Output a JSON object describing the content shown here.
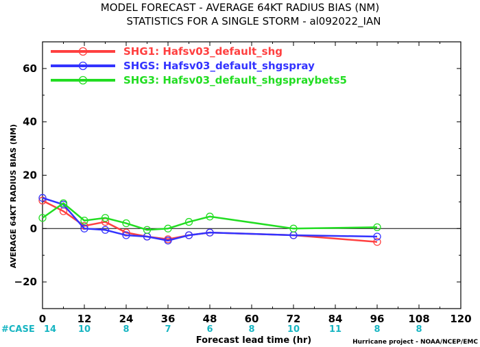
{
  "chart_data": {
    "type": "line",
    "title": "MODEL FORECAST - AVERAGE 64KT RADIUS BIAS (NM)",
    "subtitle": "STATISTICS FOR A SINGLE STORM - al092022_IAN",
    "xlabel": "Forecast lead time (hr)",
    "ylabel": "AVERAGE 64KT RADIUS BIAS (NM)",
    "xlim": [
      0,
      120
    ],
    "ylim": [
      -30,
      70
    ],
    "xticks": [
      0,
      12,
      24,
      36,
      48,
      60,
      72,
      84,
      96,
      108,
      120
    ],
    "yticks": [
      -20,
      0,
      20,
      40,
      60
    ],
    "zero_line": 0,
    "legend_position": "top-left",
    "series": [
      {
        "name": "SHG1: Hafsv03_default_shg",
        "color": "#ff4040",
        "x": [
          0,
          6,
          12,
          18,
          24,
          30,
          36,
          42,
          48,
          72,
          96
        ],
        "y": [
          10.5,
          6.5,
          1,
          2.5,
          -1.5,
          -3,
          -4,
          -2.5,
          -1.5,
          -2.5,
          -5
        ]
      },
      {
        "name": "SHGS: Hafsv03_default_shgspray",
        "color": "#3333ff",
        "x": [
          0,
          6,
          12,
          18,
          24,
          30,
          36,
          42,
          48,
          72,
          96
        ],
        "y": [
          11.5,
          9,
          0,
          -0.5,
          -2.5,
          -3,
          -4.5,
          -2.5,
          -1.5,
          -2.5,
          -3
        ]
      },
      {
        "name": "SHG3: Hafsv03_default_shgspraybets5",
        "color": "#22dd22",
        "x": [
          0,
          6,
          12,
          18,
          24,
          30,
          36,
          42,
          48,
          72,
          96
        ],
        "y": [
          4,
          9.5,
          3,
          4,
          2,
          -0.5,
          0,
          2.5,
          4.5,
          0,
          0.5
        ]
      }
    ],
    "case_counts": {
      "label": "#CASE",
      "x": [
        0,
        12,
        24,
        36,
        48,
        60,
        72,
        84,
        96,
        108
      ],
      "values": [
        "14",
        "10",
        "8",
        "7",
        "6",
        "8",
        "10",
        "11",
        "8",
        "8"
      ]
    },
    "credit": "Hurricane project - NOAA/NCEP/EMC"
  }
}
